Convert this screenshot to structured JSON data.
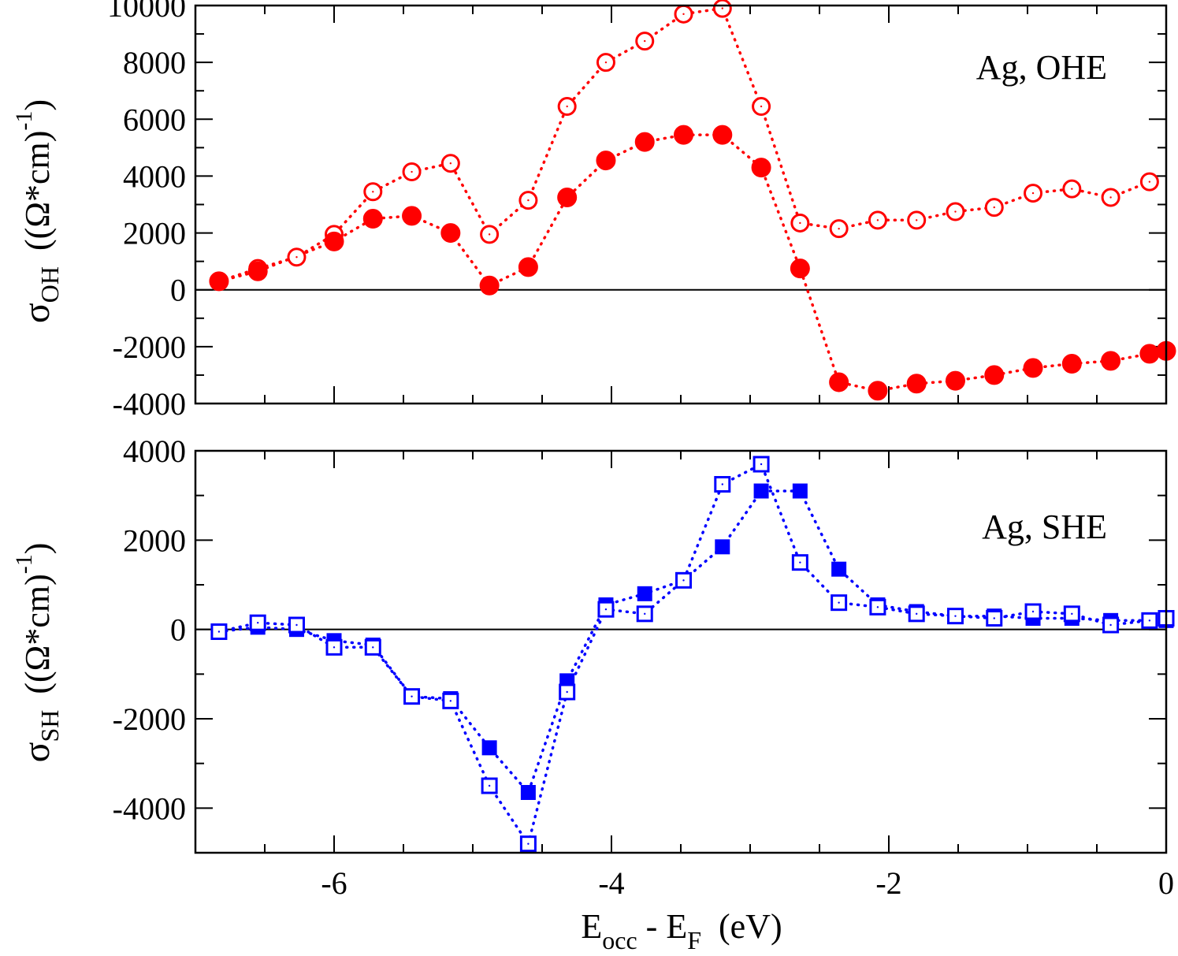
{
  "chart_data": [
    {
      "type": "scatter",
      "panel": "top",
      "ylabel_symbol": "σ",
      "ylabel_sub": "OH",
      "ylabel_units_pre": "((Ω*cm)",
      "ylabel_units_sup": "-1",
      "ylabel_units_post": ")",
      "annotation": "Ag, OHE",
      "xlim": [
        -7.0,
        0.0
      ],
      "ylim": [
        -4000,
        10000
      ],
      "yticks": [
        -4000,
        -2000,
        0,
        2000,
        4000,
        6000,
        8000,
        10000
      ],
      "ytick_labels": [
        "-4000",
        "-2000",
        "0",
        "2000",
        "4000",
        "6000",
        "8000",
        "10000"
      ],
      "zero_line": true,
      "color": "#ff0000",
      "series": [
        {
          "name": "open",
          "marker": "circle-open",
          "x": [
            -6.83,
            -6.55,
            -6.27,
            -6.0,
            -5.72,
            -5.44,
            -5.16,
            -4.88,
            -4.6,
            -4.32,
            -4.04,
            -3.76,
            -3.48,
            -3.2,
            -2.92,
            -2.64,
            -2.36,
            -2.08,
            -1.8,
            -1.52,
            -1.24,
            -0.96,
            -0.68,
            -0.4,
            -0.12
          ],
          "y": [
            300,
            750,
            1150,
            1950,
            3450,
            4150,
            4450,
            1950,
            3150,
            6450,
            8000,
            8750,
            9700,
            9900,
            6450,
            2350,
            2150,
            2450,
            2450,
            2750,
            2900,
            3400,
            3550,
            3250,
            3800
          ]
        },
        {
          "name": "filled",
          "marker": "circle-filled",
          "x": [
            -6.83,
            -6.55,
            -6.0,
            -5.72,
            -5.44,
            -5.16,
            -4.88,
            -4.6,
            -4.32,
            -4.04,
            -3.76,
            -3.48,
            -3.2,
            -2.92,
            -2.64,
            -2.36,
            -2.08,
            -1.8,
            -1.52,
            -1.24,
            -0.96,
            -0.68,
            -0.4,
            -0.12,
            0.0
          ],
          "y": [
            300,
            650,
            1700,
            2500,
            2600,
            2000,
            150,
            800,
            3250,
            4550,
            5200,
            5450,
            5450,
            4300,
            750,
            -3250,
            -3550,
            -3300,
            -3200,
            -3000,
            -2750,
            -2600,
            -2500,
            -2250,
            -2150
          ]
        }
      ]
    },
    {
      "type": "scatter",
      "panel": "bottom",
      "ylabel_symbol": "σ",
      "ylabel_sub": "SH",
      "ylabel_units_pre": "((Ω*cm)",
      "ylabel_units_sup": "-1",
      "ylabel_units_post": ")",
      "annotation": "Ag, SHE",
      "xlim": [
        -7.0,
        0.0
      ],
      "ylim": [
        -5000,
        4000
      ],
      "yticks": [
        -4000,
        -2000,
        0,
        2000,
        4000
      ],
      "ytick_labels": [
        "-4000",
        "-2000",
        "0",
        "2000",
        "4000"
      ],
      "xticks": [
        -6,
        -4,
        -2,
        0
      ],
      "xtick_labels": [
        "-6",
        "-4",
        "-2",
        "0"
      ],
      "xlabel_main": "E",
      "xlabel_sub1": "occ",
      "xlabel_mid": " - E",
      "xlabel_sub2": "F",
      "xlabel_units": "(eV)",
      "zero_line": true,
      "color": "#0000ff",
      "series": [
        {
          "name": "filled",
          "marker": "square-filled",
          "x": [
            -6.83,
            -6.55,
            -6.27,
            -6.0,
            -5.72,
            -5.44,
            -5.16,
            -4.88,
            -4.6,
            -4.32,
            -4.04,
            -3.76,
            -3.48,
            -3.2,
            -2.92,
            -2.64,
            -2.36,
            -2.08,
            -1.8,
            -1.52,
            -1.24,
            -0.96,
            -0.68,
            -0.4,
            -0.12,
            0.0
          ],
          "y": [
            -50,
            50,
            0,
            -250,
            -350,
            -1500,
            -1550,
            -2650,
            -3650,
            -1150,
            550,
            800,
            1100,
            1850,
            3100,
            3100,
            1350,
            550,
            400,
            300,
            300,
            250,
            250,
            200,
            200,
            200
          ]
        },
        {
          "name": "open",
          "marker": "square-open",
          "x": [
            -6.83,
            -6.55,
            -6.27,
            -6.0,
            -5.72,
            -5.44,
            -5.16,
            -4.88,
            -4.6,
            -4.32,
            -4.04,
            -3.76,
            -3.48,
            -3.2,
            -2.92,
            -2.64,
            -2.36,
            -2.08,
            -1.8,
            -1.52,
            -1.24,
            -0.96,
            -0.68,
            -0.4,
            -0.12,
            0.0
          ],
          "y": [
            -50,
            150,
            100,
            -400,
            -400,
            -1500,
            -1600,
            -3500,
            -4800,
            -1400,
            450,
            350,
            1100,
            3250,
            3700,
            1500,
            600,
            500,
            350,
            300,
            250,
            400,
            350,
            100,
            200,
            250
          ]
        }
      ]
    }
  ]
}
